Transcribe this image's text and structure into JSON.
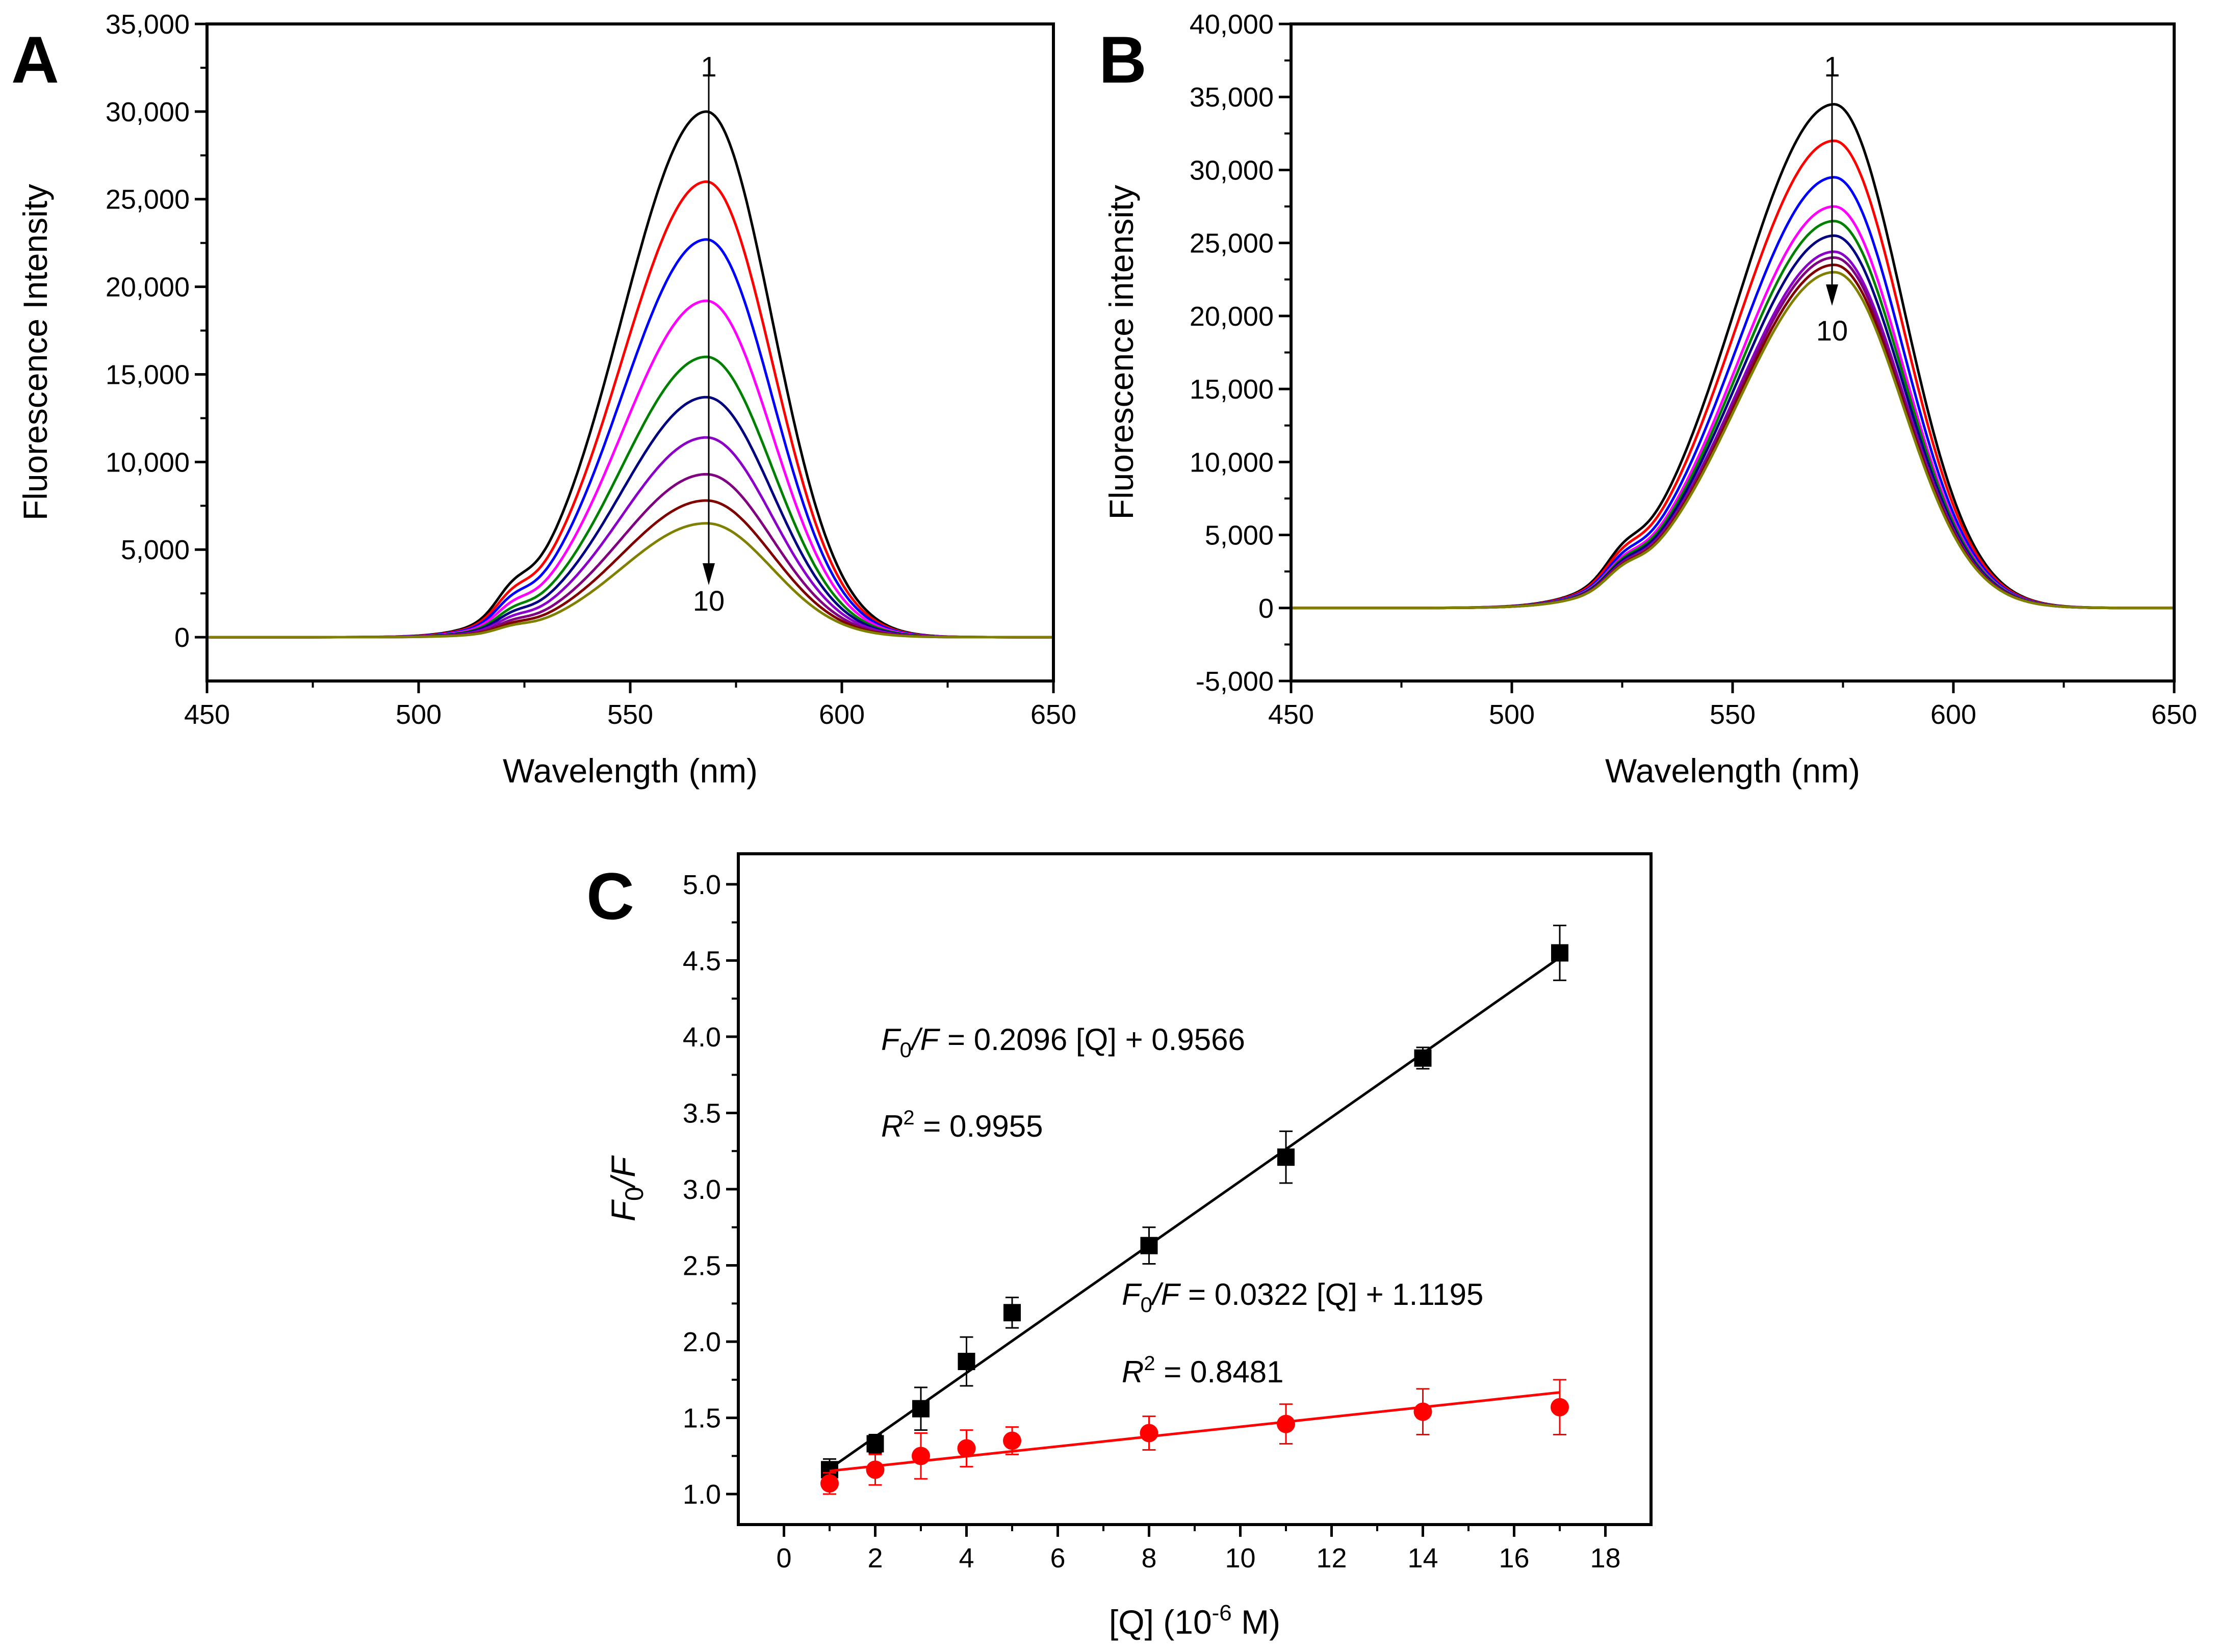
{
  "chart_data": [
    {
      "panel": "A",
      "type": "line",
      "xlabel": "Wavelength (nm)",
      "ylabel": "Fluorescence Intensity",
      "xlim": [
        450,
        650
      ],
      "ylim": [
        -2500,
        35000
      ],
      "xticks": [
        "450",
        "500",
        "550",
        "600",
        "650"
      ],
      "yticks": [
        "0",
        "5,000",
        "10,000",
        "15,000",
        "20,000",
        "25,000",
        "30,000",
        "35,000"
      ],
      "peak_wavelength": 568,
      "curve_shape": {
        "center": 568,
        "left_sigma": 20,
        "right_sigma": 15.5,
        "shoulder_at": 522
      },
      "arrow_start_label": "1",
      "arrow_end_label": "10",
      "series": [
        {
          "name": "1",
          "color": "#000000",
          "peak": 30000
        },
        {
          "name": "2",
          "color": "#ff0000",
          "peak": 26000
        },
        {
          "name": "3",
          "color": "#0000ff",
          "peak": 22700
        },
        {
          "name": "4",
          "color": "#ff00ff",
          "peak": 19200
        },
        {
          "name": "5",
          "color": "#008000",
          "peak": 16000
        },
        {
          "name": "6",
          "color": "#000080",
          "peak": 13700
        },
        {
          "name": "7",
          "color": "#8b00c8",
          "peak": 11400
        },
        {
          "name": "8",
          "color": "#800080",
          "peak": 9300
        },
        {
          "name": "9",
          "color": "#800000",
          "peak": 7800
        },
        {
          "name": "10",
          "color": "#808000",
          "peak": 6500
        }
      ]
    },
    {
      "panel": "B",
      "type": "line",
      "xlabel": "Wavelength (nm)",
      "ylabel": "Fluorescence intensity",
      "xlim": [
        450,
        650
      ],
      "ylim": [
        -5000,
        40000
      ],
      "xticks": [
        "450",
        "500",
        "550",
        "600",
        "650"
      ],
      "yticks": [
        "-5,000",
        "0",
        "5,000",
        "10,000",
        "15,000",
        "20,000",
        "25,000",
        "30,000",
        "35,000",
        "40,000"
      ],
      "peak_wavelength": 573,
      "curve_shape": {
        "center": 573,
        "left_sigma": 22,
        "right_sigma": 15.5,
        "shoulder_at": 525
      },
      "arrow_start_label": "1",
      "arrow_end_label": "10",
      "series": [
        {
          "name": "1",
          "color": "#000000",
          "peak": 34500
        },
        {
          "name": "2",
          "color": "#ff0000",
          "peak": 32000
        },
        {
          "name": "3",
          "color": "#0000ff",
          "peak": 29500
        },
        {
          "name": "4",
          "color": "#ff00ff",
          "peak": 27500
        },
        {
          "name": "5",
          "color": "#008000",
          "peak": 26500
        },
        {
          "name": "6",
          "color": "#000080",
          "peak": 25500
        },
        {
          "name": "7",
          "color": "#8b00c8",
          "peak": 24400
        },
        {
          "name": "8",
          "color": "#800080",
          "peak": 24000
        },
        {
          "name": "9",
          "color": "#800000",
          "peak": 23500
        },
        {
          "name": "10",
          "color": "#808000",
          "peak": 23000
        }
      ]
    },
    {
      "panel": "C",
      "type": "scatter",
      "xlabel_prefix": "[Q] (10",
      "xlabel_exp": "-6",
      "xlabel_suffix": " M)",
      "ylabel_f": "F",
      "ylabel_sub": "0",
      "ylabel_rest": "/F",
      "xlim": [
        -1,
        19
      ],
      "ylim": [
        0.8,
        5.2
      ],
      "xticks": [
        "0",
        "2",
        "4",
        "6",
        "8",
        "10",
        "12",
        "14",
        "16",
        "18"
      ],
      "yticks": [
        "1.0",
        "1.5",
        "2.0",
        "2.5",
        "3.0",
        "3.5",
        "4.0",
        "4.5",
        "5.0"
      ],
      "series": [
        {
          "name": "black",
          "marker": "square",
          "color": "#000000",
          "x": [
            1,
            2,
            3,
            4,
            5,
            8,
            11,
            14,
            17
          ],
          "y": [
            1.16,
            1.33,
            1.56,
            1.87,
            2.19,
            2.63,
            3.21,
            3.86,
            4.55
          ],
          "err": [
            0.07,
            0.06,
            0.14,
            0.16,
            0.1,
            0.12,
            0.17,
            0.07,
            0.18
          ],
          "fit": {
            "slope": 0.2096,
            "intercept": 0.9566,
            "x_range": [
              1,
              17
            ]
          },
          "equation": {
            "lhs_f": "F",
            "lhs_sub": "0",
            "lhs_rest": "/F",
            "rhs": " = 0.2096 [Q] + 0.9566"
          },
          "r2": {
            "r": "R",
            "sup": "2",
            "rhs": " = 0.9955"
          }
        },
        {
          "name": "red",
          "marker": "circle",
          "color": "#ff0000",
          "x": [
            1,
            2,
            3,
            4,
            5,
            8,
            11,
            14,
            17
          ],
          "y": [
            1.07,
            1.16,
            1.25,
            1.3,
            1.35,
            1.4,
            1.46,
            1.54,
            1.57
          ],
          "err": [
            0.07,
            0.1,
            0.15,
            0.12,
            0.09,
            0.11,
            0.13,
            0.15,
            0.18
          ],
          "fit": {
            "slope": 0.0322,
            "intercept": 1.1195,
            "x_range": [
              1,
              17
            ]
          },
          "equation": {
            "lhs_f": "F",
            "lhs_sub": "0",
            "lhs_rest": "/F",
            "rhs": " = 0.0322 [Q] + 1.1195"
          },
          "r2": {
            "r": "R",
            "sup": "2",
            "rhs": " = 0.8481"
          }
        }
      ]
    }
  ]
}
